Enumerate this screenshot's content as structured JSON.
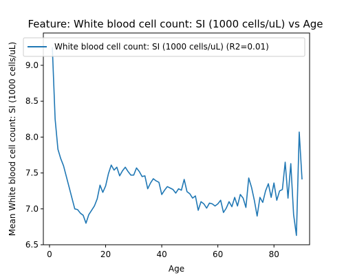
{
  "chart_data": {
    "type": "line",
    "title": "Feature: White blood cell count: SI (1000 cells/uL) vs Age",
    "xlabel": "Age",
    "ylabel": "Mean White blood cell count: SI (1000 cells/uL)",
    "xlim": [
      -2.2,
      92.7
    ],
    "ylim": [
      6.5,
      9.45
    ],
    "x_ticks": [
      0,
      20,
      40,
      60,
      80
    ],
    "y_ticks": [
      6.5,
      7.0,
      7.5,
      8.0,
      8.5,
      9.0
    ],
    "x_tick_labels": [
      "0",
      "20",
      "40",
      "60",
      "80"
    ],
    "y_tick_labels": [
      "6.5",
      "7.0",
      "7.5",
      "8.0",
      "8.5",
      "9.0"
    ],
    "grid": false,
    "legend_position": "top-left",
    "series": [
      {
        "name": "White blood cell count: SI (1000 cells/uL) (R2=0.01)",
        "color": "#1f77b4",
        "x": [
          1,
          2,
          3,
          4,
          5,
          6,
          7,
          8,
          9,
          10,
          11,
          12,
          13,
          14,
          15,
          16,
          17,
          18,
          19,
          20,
          21,
          22,
          23,
          24,
          25,
          26,
          27,
          28,
          29,
          30,
          31,
          32,
          33,
          34,
          35,
          36,
          37,
          38,
          39,
          40,
          41,
          42,
          43,
          44,
          45,
          46,
          47,
          48,
          49,
          50,
          51,
          52,
          53,
          54,
          55,
          56,
          57,
          58,
          59,
          60,
          61,
          62,
          63,
          64,
          65,
          66,
          67,
          68,
          69,
          70,
          71,
          72,
          73,
          74,
          75,
          76,
          77,
          78,
          79,
          80,
          81,
          82,
          83,
          84,
          85,
          86,
          87,
          88,
          89,
          90
        ],
        "values": [
          9.25,
          8.25,
          7.83,
          7.7,
          7.6,
          7.45,
          7.3,
          7.15,
          7.0,
          6.99,
          6.94,
          6.91,
          6.8,
          6.92,
          6.98,
          7.04,
          7.14,
          7.33,
          7.23,
          7.32,
          7.49,
          7.61,
          7.54,
          7.58,
          7.46,
          7.53,
          7.58,
          7.52,
          7.47,
          7.47,
          7.57,
          7.52,
          7.45,
          7.46,
          7.28,
          7.36,
          7.42,
          7.39,
          7.37,
          7.2,
          7.26,
          7.31,
          7.29,
          7.27,
          7.22,
          7.28,
          7.26,
          7.41,
          7.24,
          7.21,
          7.15,
          7.18,
          6.98,
          7.1,
          7.07,
          7.01,
          7.08,
          7.07,
          7.04,
          7.07,
          7.12,
          6.95,
          7.01,
          7.1,
          7.03,
          7.16,
          7.04,
          7.2,
          7.15,
          7.02,
          7.43,
          7.3,
          7.12,
          6.9,
          7.16,
          7.09,
          7.25,
          7.35,
          7.16,
          7.36,
          7.12,
          7.25,
          7.27,
          7.65,
          7.15,
          7.63,
          6.92,
          6.63,
          8.07,
          7.41
        ]
      }
    ]
  }
}
